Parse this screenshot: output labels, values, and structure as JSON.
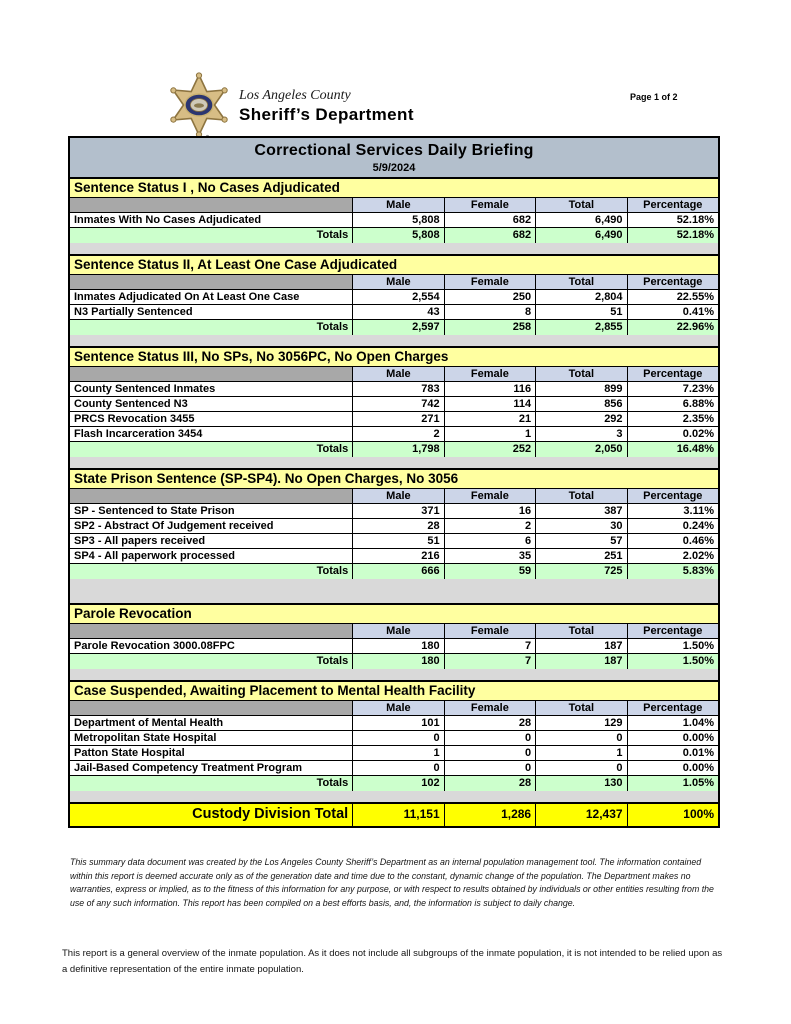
{
  "header": {
    "county_line": "Los Angeles County",
    "department_line": "Sheriff’s Department",
    "page_label": "Page 1 of 2"
  },
  "report": {
    "title": "Correctional Services Daily Briefing",
    "date": "5/9/2024"
  },
  "columns": [
    "Male",
    "Female",
    "Total",
    "Percentage"
  ],
  "totals_label": "Totals",
  "sections": [
    {
      "header": "Sentence Status I , No Cases Adjudicated",
      "rows": [
        {
          "label": "Inmates With No Cases Adjudicated",
          "male": "5,808",
          "female": "682",
          "total": "6,490",
          "percentage": "52.18%"
        }
      ],
      "totals": {
        "male": "5,808",
        "female": "682",
        "total": "6,490",
        "percentage": "52.18%"
      }
    },
    {
      "header": "Sentence Status II, At Least One Case Adjudicated",
      "rows": [
        {
          "label": "Inmates Adjudicated On At Least One Case",
          "male": "2,554",
          "female": "250",
          "total": "2,804",
          "percentage": "22.55%"
        },
        {
          "label": "N3 Partially Sentenced",
          "male": "43",
          "female": "8",
          "total": "51",
          "percentage": "0.41%"
        }
      ],
      "totals": {
        "male": "2,597",
        "female": "258",
        "total": "2,855",
        "percentage": "22.96%"
      }
    },
    {
      "header": "Sentence Status III, No SPs, No 3056PC, No Open Charges",
      "rows": [
        {
          "label": "County Sentenced Inmates",
          "male": "783",
          "female": "116",
          "total": "899",
          "percentage": "7.23%"
        },
        {
          "label": "County Sentenced N3",
          "male": "742",
          "female": "114",
          "total": "856",
          "percentage": "6.88%"
        },
        {
          "label": "PRCS Revocation 3455",
          "male": "271",
          "female": "21",
          "total": "292",
          "percentage": "2.35%"
        },
        {
          "label": "Flash Incarceration 3454",
          "male": "2",
          "female": "1",
          "total": "3",
          "percentage": "0.02%"
        }
      ],
      "totals": {
        "male": "1,798",
        "female": "252",
        "total": "2,050",
        "percentage": "16.48%"
      }
    },
    {
      "header": "State Prison Sentence (SP-SP4). No Open Charges, No 3056",
      "rows": [
        {
          "label": "SP - Sentenced to State Prison",
          "male": "371",
          "female": "16",
          "total": "387",
          "percentage": "3.11%"
        },
        {
          "label": "SP2 - Abstract Of Judgement received",
          "male": "28",
          "female": "2",
          "total": "30",
          "percentage": "0.24%"
        },
        {
          "label": "SP3 - All papers received",
          "male": "51",
          "female": "6",
          "total": "57",
          "percentage": "0.46%"
        },
        {
          "label": "SP4 - All paperwork processed",
          "male": "216",
          "female": "35",
          "total": "251",
          "percentage": "2.02%"
        }
      ],
      "totals": {
        "male": "666",
        "female": "59",
        "total": "725",
        "percentage": "5.83%"
      }
    },
    {
      "header": "Parole Revocation",
      "rows": [
        {
          "label": "Parole Revocation 3000.08FPC",
          "male": "180",
          "female": "7",
          "total": "187",
          "percentage": "1.50%"
        }
      ],
      "totals": {
        "male": "180",
        "female": "7",
        "total": "187",
        "percentage": "1.50%"
      }
    },
    {
      "header": "Case Suspended, Awaiting Placement to Mental Health Facility",
      "rows": [
        {
          "label": "Department of Mental Health",
          "male": "101",
          "female": "28",
          "total": "129",
          "percentage": "1.04%"
        },
        {
          "label": "Metropolitan State Hospital",
          "male": "0",
          "female": "0",
          "total": "0",
          "percentage": "0.00%"
        },
        {
          "label": "Patton State Hospital",
          "male": "1",
          "female": "0",
          "total": "1",
          "percentage": "0.01%"
        },
        {
          "label": "Jail-Based Competency Treatment Program",
          "male": "0",
          "female": "0",
          "total": "0",
          "percentage": "0.00%"
        }
      ],
      "totals": {
        "male": "102",
        "female": "28",
        "total": "130",
        "percentage": "1.05%"
      }
    }
  ],
  "grand_total": {
    "label": "Custody Division Total",
    "male": "11,151",
    "female": "1,286",
    "total": "12,437",
    "percentage": "100%"
  },
  "footnotes": {
    "disclaimer": "This summary data document was created by the Los Angeles County Sheriff’s Department as an internal population management tool.  The information contained within this report is deemed accurate only as of the generation date and time due to the constant, dynamic change of the population.  The Department makes no warranties, express or implied, as to the fitness of this information for any purpose, or with respect to results obtained by individuals or other entities resulting from the use of any such information.  This report has been compiled on a best efforts basis, and, the information is subject to daily change.",
    "overview_note": "This report is a general overview of the inmate population.  As it does not include all subgroups of the inmate population, it is not intended to be relied upon as a definitive representation of the entire inmate population."
  },
  "colors": {
    "title_bar": "#b3bfcc",
    "section_header": "#ffffa0",
    "column_header": "#ccd5e8",
    "corner_cell": "#a8a8a8",
    "totals_row": "#ccffcc",
    "spacer": "#d9d9d9",
    "grand_total_row": "#ffff00"
  }
}
